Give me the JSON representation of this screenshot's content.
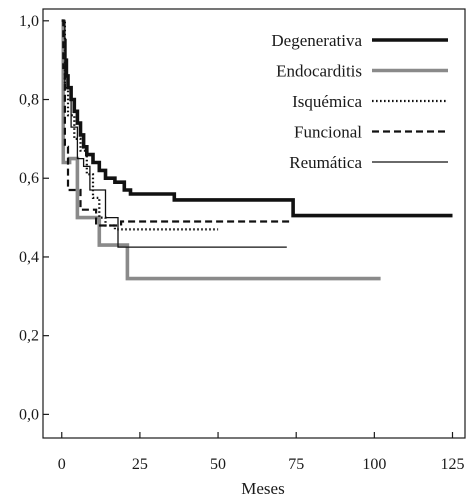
{
  "chart_data": {
    "type": "line",
    "subtype": "step",
    "title": "",
    "xlabel": "Meses",
    "ylabel": "",
    "xlim": [
      -6,
      129
    ],
    "ylim": [
      -0.06,
      1.03
    ],
    "x_ticks": [
      0,
      25,
      50,
      75,
      100,
      125
    ],
    "y_ticks": [
      "0,0",
      "0,2",
      "0,4",
      "0,6",
      "0,8",
      "1,0"
    ],
    "y_tick_values": [
      0.0,
      0.2,
      0.4,
      0.6,
      0.8,
      1.0
    ],
    "grid": false,
    "legend_position": "top-right",
    "series": [
      {
        "name": "Degenerativa",
        "color": "#111111",
        "style": "solid-thick",
        "points": [
          [
            0,
            1.0
          ],
          [
            0.5,
            0.95
          ],
          [
            1,
            0.9
          ],
          [
            1.5,
            0.86
          ],
          [
            2,
            0.83
          ],
          [
            3,
            0.8
          ],
          [
            4,
            0.77
          ],
          [
            5,
            0.74
          ],
          [
            6,
            0.71
          ],
          [
            7,
            0.68
          ],
          [
            8,
            0.66
          ],
          [
            10,
            0.64
          ],
          [
            12,
            0.62
          ],
          [
            14,
            0.6
          ],
          [
            17,
            0.59
          ],
          [
            20,
            0.57
          ],
          [
            22,
            0.56
          ],
          [
            36,
            0.545
          ],
          [
            74,
            0.505
          ],
          [
            125,
            0.505
          ]
        ]
      },
      {
        "name": "Endocarditis",
        "color": "#8a8a8a",
        "style": "solid-thick",
        "points": [
          [
            0,
            1.0
          ],
          [
            0.5,
            0.64
          ],
          [
            2,
            0.64
          ],
          [
            2.5,
            0.65
          ],
          [
            5,
            0.65
          ],
          [
            5,
            0.5
          ],
          [
            12,
            0.5
          ],
          [
            12,
            0.43
          ],
          [
            21,
            0.43
          ],
          [
            21,
            0.345
          ],
          [
            102,
            0.345
          ]
        ]
      },
      {
        "name": "Isquémica",
        "color": "#111111",
        "style": "dotted",
        "points": [
          [
            0,
            1.0
          ],
          [
            1,
            0.84
          ],
          [
            2,
            0.76
          ],
          [
            4,
            0.7
          ],
          [
            6,
            0.67
          ],
          [
            8,
            0.61
          ],
          [
            10,
            0.55
          ],
          [
            12,
            0.5
          ],
          [
            14,
            0.48
          ],
          [
            17,
            0.47
          ],
          [
            50,
            0.47
          ]
        ]
      },
      {
        "name": "Funcional",
        "color": "#111111",
        "style": "dashed",
        "points": [
          [
            0,
            1.0
          ],
          [
            0.5,
            0.88
          ],
          [
            1,
            0.68
          ],
          [
            2,
            0.57
          ],
          [
            5,
            0.57
          ],
          [
            6,
            0.52
          ],
          [
            10,
            0.52
          ],
          [
            11,
            0.48
          ],
          [
            18,
            0.48
          ],
          [
            19,
            0.49
          ],
          [
            73,
            0.49
          ]
        ]
      },
      {
        "name": "Reumática",
        "color": "#111111",
        "style": "solid-thin",
        "points": [
          [
            0,
            1.0
          ],
          [
            1,
            0.83
          ],
          [
            3,
            0.73
          ],
          [
            5,
            0.65
          ],
          [
            7,
            0.63
          ],
          [
            9,
            0.57
          ],
          [
            13,
            0.57
          ],
          [
            14,
            0.5
          ],
          [
            17,
            0.5
          ],
          [
            18,
            0.425
          ],
          [
            72,
            0.425
          ]
        ]
      }
    ]
  }
}
